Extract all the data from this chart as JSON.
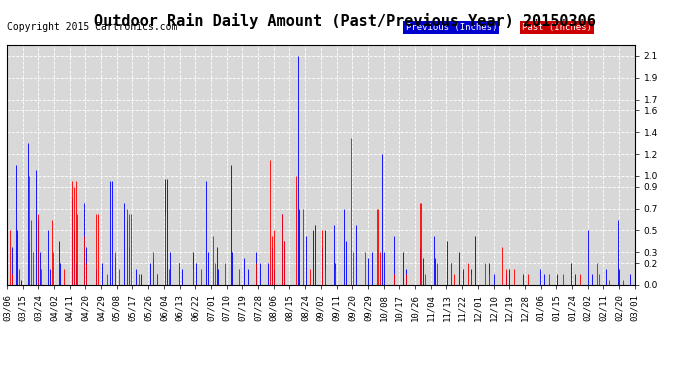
{
  "title": "Outdoor Rain Daily Amount (Past/Previous Year) 20150306",
  "copyright": "Copyright 2015 Cartronics.com",
  "legend_labels": [
    "Previous (Inches)",
    "Past (Inches)"
  ],
  "legend_colors": [
    "#0000ff",
    "#ff0000"
  ],
  "legend_bg_colors": [
    "#0000cc",
    "#cc0000"
  ],
  "line_color_previous": "#0000ff",
  "line_color_past": "#ff0000",
  "bg_color": "#ffffff",
  "plot_bg_color": "#d8d8d8",
  "grid_color": "#ffffff",
  "yticks": [
    0.0,
    0.2,
    0.3,
    0.5,
    0.7,
    0.9,
    1.0,
    1.2,
    1.4,
    1.6,
    1.7,
    1.9,
    2.1
  ],
  "ylim": [
    0.0,
    2.2
  ],
  "num_days": 366,
  "x_tick_labels": [
    "03/06",
    "03/15",
    "03/24",
    "04/02",
    "04/11",
    "04/20",
    "04/29",
    "05/08",
    "05/17",
    "05/26",
    "06/04",
    "06/13",
    "06/22",
    "07/01",
    "07/10",
    "07/19",
    "07/28",
    "08/06",
    "08/15",
    "08/24",
    "09/02",
    "09/11",
    "09/20",
    "09/29",
    "10/08",
    "10/17",
    "10/26",
    "11/04",
    "11/13",
    "11/22",
    "12/01",
    "12/10",
    "12/19",
    "12/28",
    "01/06",
    "01/15",
    "01/24",
    "02/02",
    "02/11",
    "02/20",
    "03/01"
  ],
  "title_fontsize": 11,
  "axis_fontsize": 6.5,
  "copyright_fontsize": 7
}
